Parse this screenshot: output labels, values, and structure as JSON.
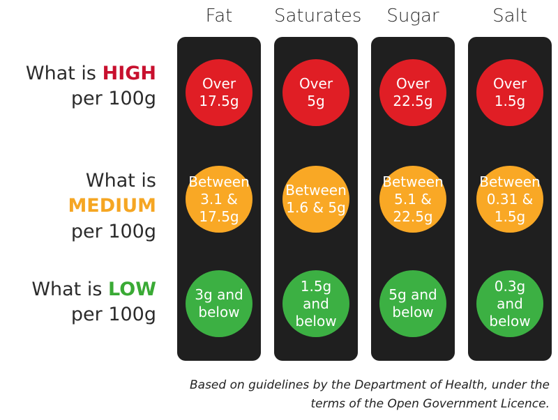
{
  "columns": [
    {
      "name": "Fat",
      "high": "Over\n17.5g",
      "medium": "Between\n3.1 &\n17.5g",
      "low": "3g and\nbelow"
    },
    {
      "name": "Saturates",
      "high": "Over\n5g",
      "medium": "Between\n1.6 & 5g",
      "low": "1.5g and\nbelow"
    },
    {
      "name": "Sugar",
      "high": "Over\n22.5g",
      "medium": "Between\n5.1 &\n22.5g",
      "low": "5g and\nbelow"
    },
    {
      "name": "Salt",
      "high": "Over\n1.5g",
      "medium": "Between\n0.31 &\n1.5g",
      "low": "0.3g and\nbelow"
    }
  ],
  "rows": {
    "high": {
      "prefix": "What is ",
      "level": "HIGH",
      "suffix": "per 100g",
      "color": "#c8102e"
    },
    "medium": {
      "prefix": "What is ",
      "level": "MEDIUM",
      "suffix": "per 100g",
      "color": "#f5a623"
    },
    "low": {
      "prefix": "What is ",
      "level": "LOW",
      "suffix": "per 100g",
      "color": "#3aaa35"
    }
  },
  "lamp_colors": {
    "high": "#e01e25",
    "medium": "#f9a825",
    "low": "#3cb043"
  },
  "light_housing_color": "#1f1f1f",
  "footer": {
    "line1": "Based on guidelines by the Department of Health, under the",
    "line2": "terms of the Open Government Licence."
  }
}
